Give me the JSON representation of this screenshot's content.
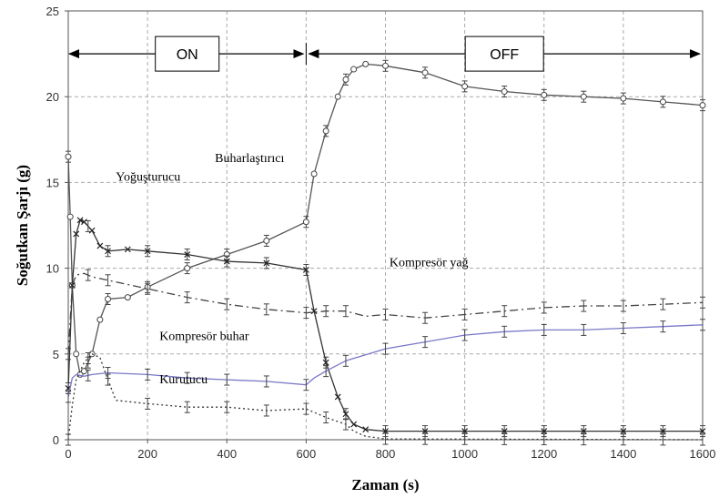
{
  "chart_data": {
    "type": "line",
    "xlabel": "Zaman (s)",
    "ylabel": "Soğutkan Şarjı (g)",
    "xlim": [
      0,
      1600
    ],
    "ylim": [
      0,
      25
    ],
    "x_ticks": [
      "0",
      "200",
      "400",
      "600",
      "800",
      "1000",
      "1200",
      "1400",
      "1600"
    ],
    "y_ticks": [
      "0",
      "5",
      "10",
      "15",
      "20",
      "25"
    ],
    "grid": true,
    "phases": [
      {
        "label": "ON",
        "start": 0,
        "end": 600
      },
      {
        "label": "OFF",
        "start": 600,
        "end": 1600
      }
    ],
    "annotations": [
      {
        "text": "Buharlaştırıcı",
        "x": 370,
        "y": 16.2
      },
      {
        "text": "Yoğuşturucu",
        "x": 120,
        "y": 15.1
      },
      {
        "text": "Kompresör yağ",
        "x": 810,
        "y": 10.1
      },
      {
        "text": "Kompresör buhar",
        "x": 230,
        "y": 5.8
      },
      {
        "text": "Kurutucu",
        "x": 230,
        "y": 3.3
      }
    ],
    "series": [
      {
        "name": "Buharlaştırıcı",
        "marker": "circle",
        "dash": "",
        "color": "#555555",
        "x": [
          0,
          5,
          10,
          20,
          30,
          40,
          60,
          80,
          100,
          150,
          200,
          300,
          400,
          500,
          600,
          620,
          650,
          680,
          700,
          720,
          750,
          800,
          900,
          1000,
          1100,
          1200,
          1300,
          1400,
          1500,
          1600
        ],
        "y": [
          16.5,
          13,
          9,
          5,
          3.8,
          4,
          5,
          7,
          8.2,
          8.3,
          8.9,
          10,
          10.8,
          11.6,
          12.7,
          15.5,
          18,
          20,
          21,
          21.6,
          21.9,
          21.8,
          21.4,
          20.6,
          20.3,
          20.1,
          20,
          19.9,
          19.7,
          19.5
        ]
      },
      {
        "name": "Yoğuşturucu",
        "marker": "x",
        "dash": "",
        "color": "#333333",
        "x": [
          0,
          10,
          20,
          30,
          40,
          60,
          80,
          100,
          150,
          200,
          300,
          400,
          500,
          600,
          620,
          650,
          680,
          700,
          720,
          750,
          800,
          900,
          1000,
          1100,
          1200,
          1300,
          1400,
          1500,
          1600
        ],
        "y": [
          3,
          9,
          12,
          12.8,
          12.7,
          12.2,
          11.3,
          11,
          11.1,
          11,
          10.8,
          10.4,
          10.3,
          9.9,
          7.5,
          4.5,
          2.5,
          1.5,
          0.9,
          0.6,
          0.5,
          0.5,
          0.5,
          0.5,
          0.5,
          0.5,
          0.5,
          0.5,
          0.5
        ]
      },
      {
        "name": "Kompresör yağ",
        "marker": "none",
        "dash": "9,4,2,4",
        "color": "#444444",
        "x": [
          0,
          10,
          20,
          40,
          60,
          100,
          200,
          300,
          400,
          500,
          600,
          650,
          700,
          750,
          800,
          900,
          1000,
          1100,
          1200,
          1300,
          1400,
          1500,
          1600
        ],
        "y": [
          5,
          9,
          9.6,
          9.7,
          9.5,
          9.3,
          8.8,
          8.3,
          7.9,
          7.6,
          7.4,
          7.5,
          7.5,
          7.2,
          7.3,
          7.1,
          7.3,
          7.5,
          7.7,
          7.8,
          7.8,
          7.9,
          8
        ]
      },
      {
        "name": "Kompresör buhar",
        "marker": "none",
        "dash": "",
        "color": "#7a78c8",
        "x": [
          0,
          10,
          20,
          40,
          60,
          100,
          200,
          300,
          400,
          500,
          600,
          620,
          650,
          700,
          800,
          900,
          1000,
          1100,
          1200,
          1300,
          1400,
          1500,
          1600
        ],
        "y": [
          2.5,
          3.6,
          3.8,
          3.7,
          3.8,
          3.9,
          3.8,
          3.6,
          3.5,
          3.4,
          3.2,
          3.6,
          4,
          4.6,
          5.3,
          5.7,
          6.1,
          6.3,
          6.4,
          6.4,
          6.5,
          6.6,
          6.7
        ]
      },
      {
        "name": "Kurutucu",
        "marker": "none",
        "dash": "2,3",
        "color": "#333333",
        "x": [
          0,
          10,
          20,
          40,
          60,
          80,
          100,
          120,
          200,
          300,
          400,
          500,
          600,
          620,
          650,
          700,
          720,
          750,
          800,
          1600
        ],
        "y": [
          0,
          2,
          3.5,
          4.5,
          5,
          4.8,
          3.5,
          2.3,
          2.1,
          1.9,
          1.9,
          1.7,
          1.8,
          1.6,
          1.3,
          0.9,
          0.5,
          0.2,
          0.05,
          0
        ]
      }
    ]
  }
}
